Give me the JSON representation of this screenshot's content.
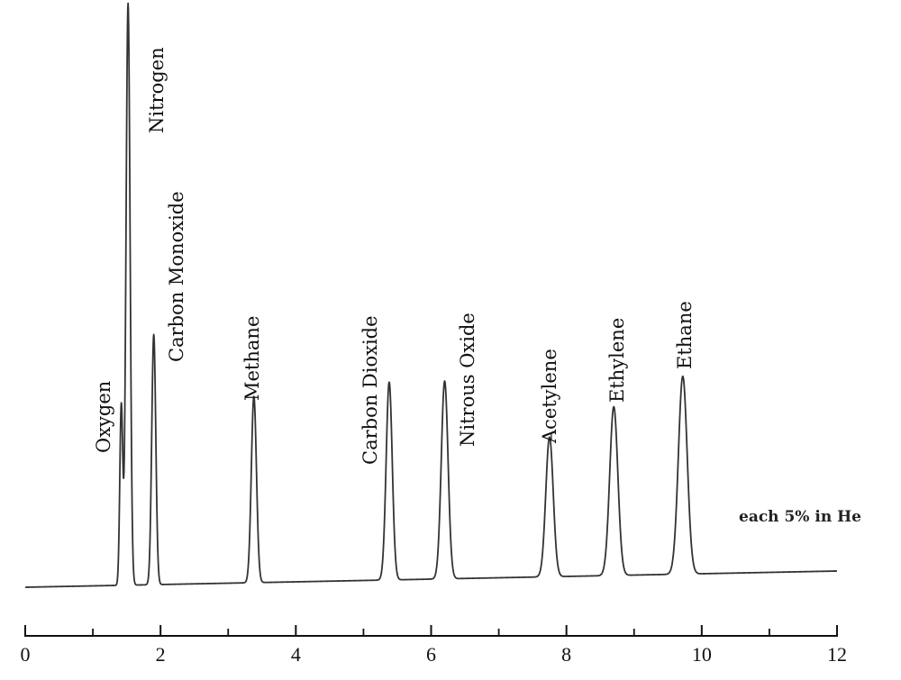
{
  "chart_data": {
    "type": "line",
    "title": "",
    "xlabel": "",
    "ylabel": "",
    "xlim": [
      0,
      12
    ],
    "xticks_major": [
      0,
      2,
      4,
      6,
      8,
      10,
      12
    ],
    "xtick_minor_step": 1,
    "grid": false,
    "annotation": "each 5% in He",
    "peaks": [
      {
        "label": "Oxygen",
        "rt": 1.42,
        "height": 0.31,
        "width": 0.022
      },
      {
        "label": "Nitrogen",
        "rt": 1.52,
        "height": 1.0,
        "width": 0.03
      },
      {
        "label": "Carbon Monoxide",
        "rt": 1.9,
        "height": 0.43,
        "width": 0.03
      },
      {
        "label": "Methane",
        "rt": 3.38,
        "height": 0.32,
        "width": 0.038
      },
      {
        "label": "Carbon Dioxide",
        "rt": 5.38,
        "height": 0.34,
        "width": 0.045
      },
      {
        "label": "Nitrous Oxide",
        "rt": 6.2,
        "height": 0.34,
        "width": 0.05
      },
      {
        "label": "Acetylene",
        "rt": 7.75,
        "height": 0.24,
        "width": 0.055
      },
      {
        "label": "Ethylene",
        "rt": 8.7,
        "height": 0.29,
        "width": 0.06
      },
      {
        "label": "Ethane",
        "rt": 9.72,
        "height": 0.34,
        "width": 0.065
      }
    ],
    "line_color": "#333333"
  }
}
